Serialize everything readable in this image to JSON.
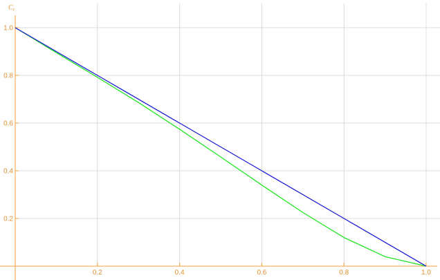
{
  "chart_data": {
    "type": "line",
    "title": "",
    "xlabel": "",
    "ylabel": "C_r",
    "ylabel_main": "C",
    "ylabel_sub": "r",
    "xlim": [
      0,
      1
    ],
    "ylim": [
      0,
      1
    ],
    "grid": true,
    "x_ticks": [
      0.2,
      0.4,
      0.6,
      0.8,
      1.0
    ],
    "x_tick_labels": [
      "0.2",
      "0.4",
      "0.6",
      "0.8",
      "1.0"
    ],
    "y_ticks": [
      0.2,
      0.4,
      0.6,
      0.8,
      1.0
    ],
    "y_tick_labels": [
      "0.2",
      "0.4",
      "0.6",
      "0.8",
      "1.0"
    ],
    "series": [
      {
        "color": "#1a1ad6",
        "x": [
          0,
          0.2,
          0.4,
          0.6,
          0.8,
          1.0
        ],
        "y": [
          1.0,
          0.8,
          0.6,
          0.4,
          0.2,
          0.0
        ]
      },
      {
        "color": "#22e622",
        "x": [
          0,
          0.1,
          0.2,
          0.3,
          0.4,
          0.5,
          0.6,
          0.7,
          0.8,
          0.9,
          1.0
        ],
        "y": [
          1.0,
          0.895,
          0.792,
          0.686,
          0.574,
          0.458,
          0.34,
          0.225,
          0.12,
          0.04,
          0.0
        ]
      }
    ],
    "colors": {
      "axis": "#f0a040",
      "tick_label": "#e09030",
      "grid": "#dcdcdc"
    }
  }
}
